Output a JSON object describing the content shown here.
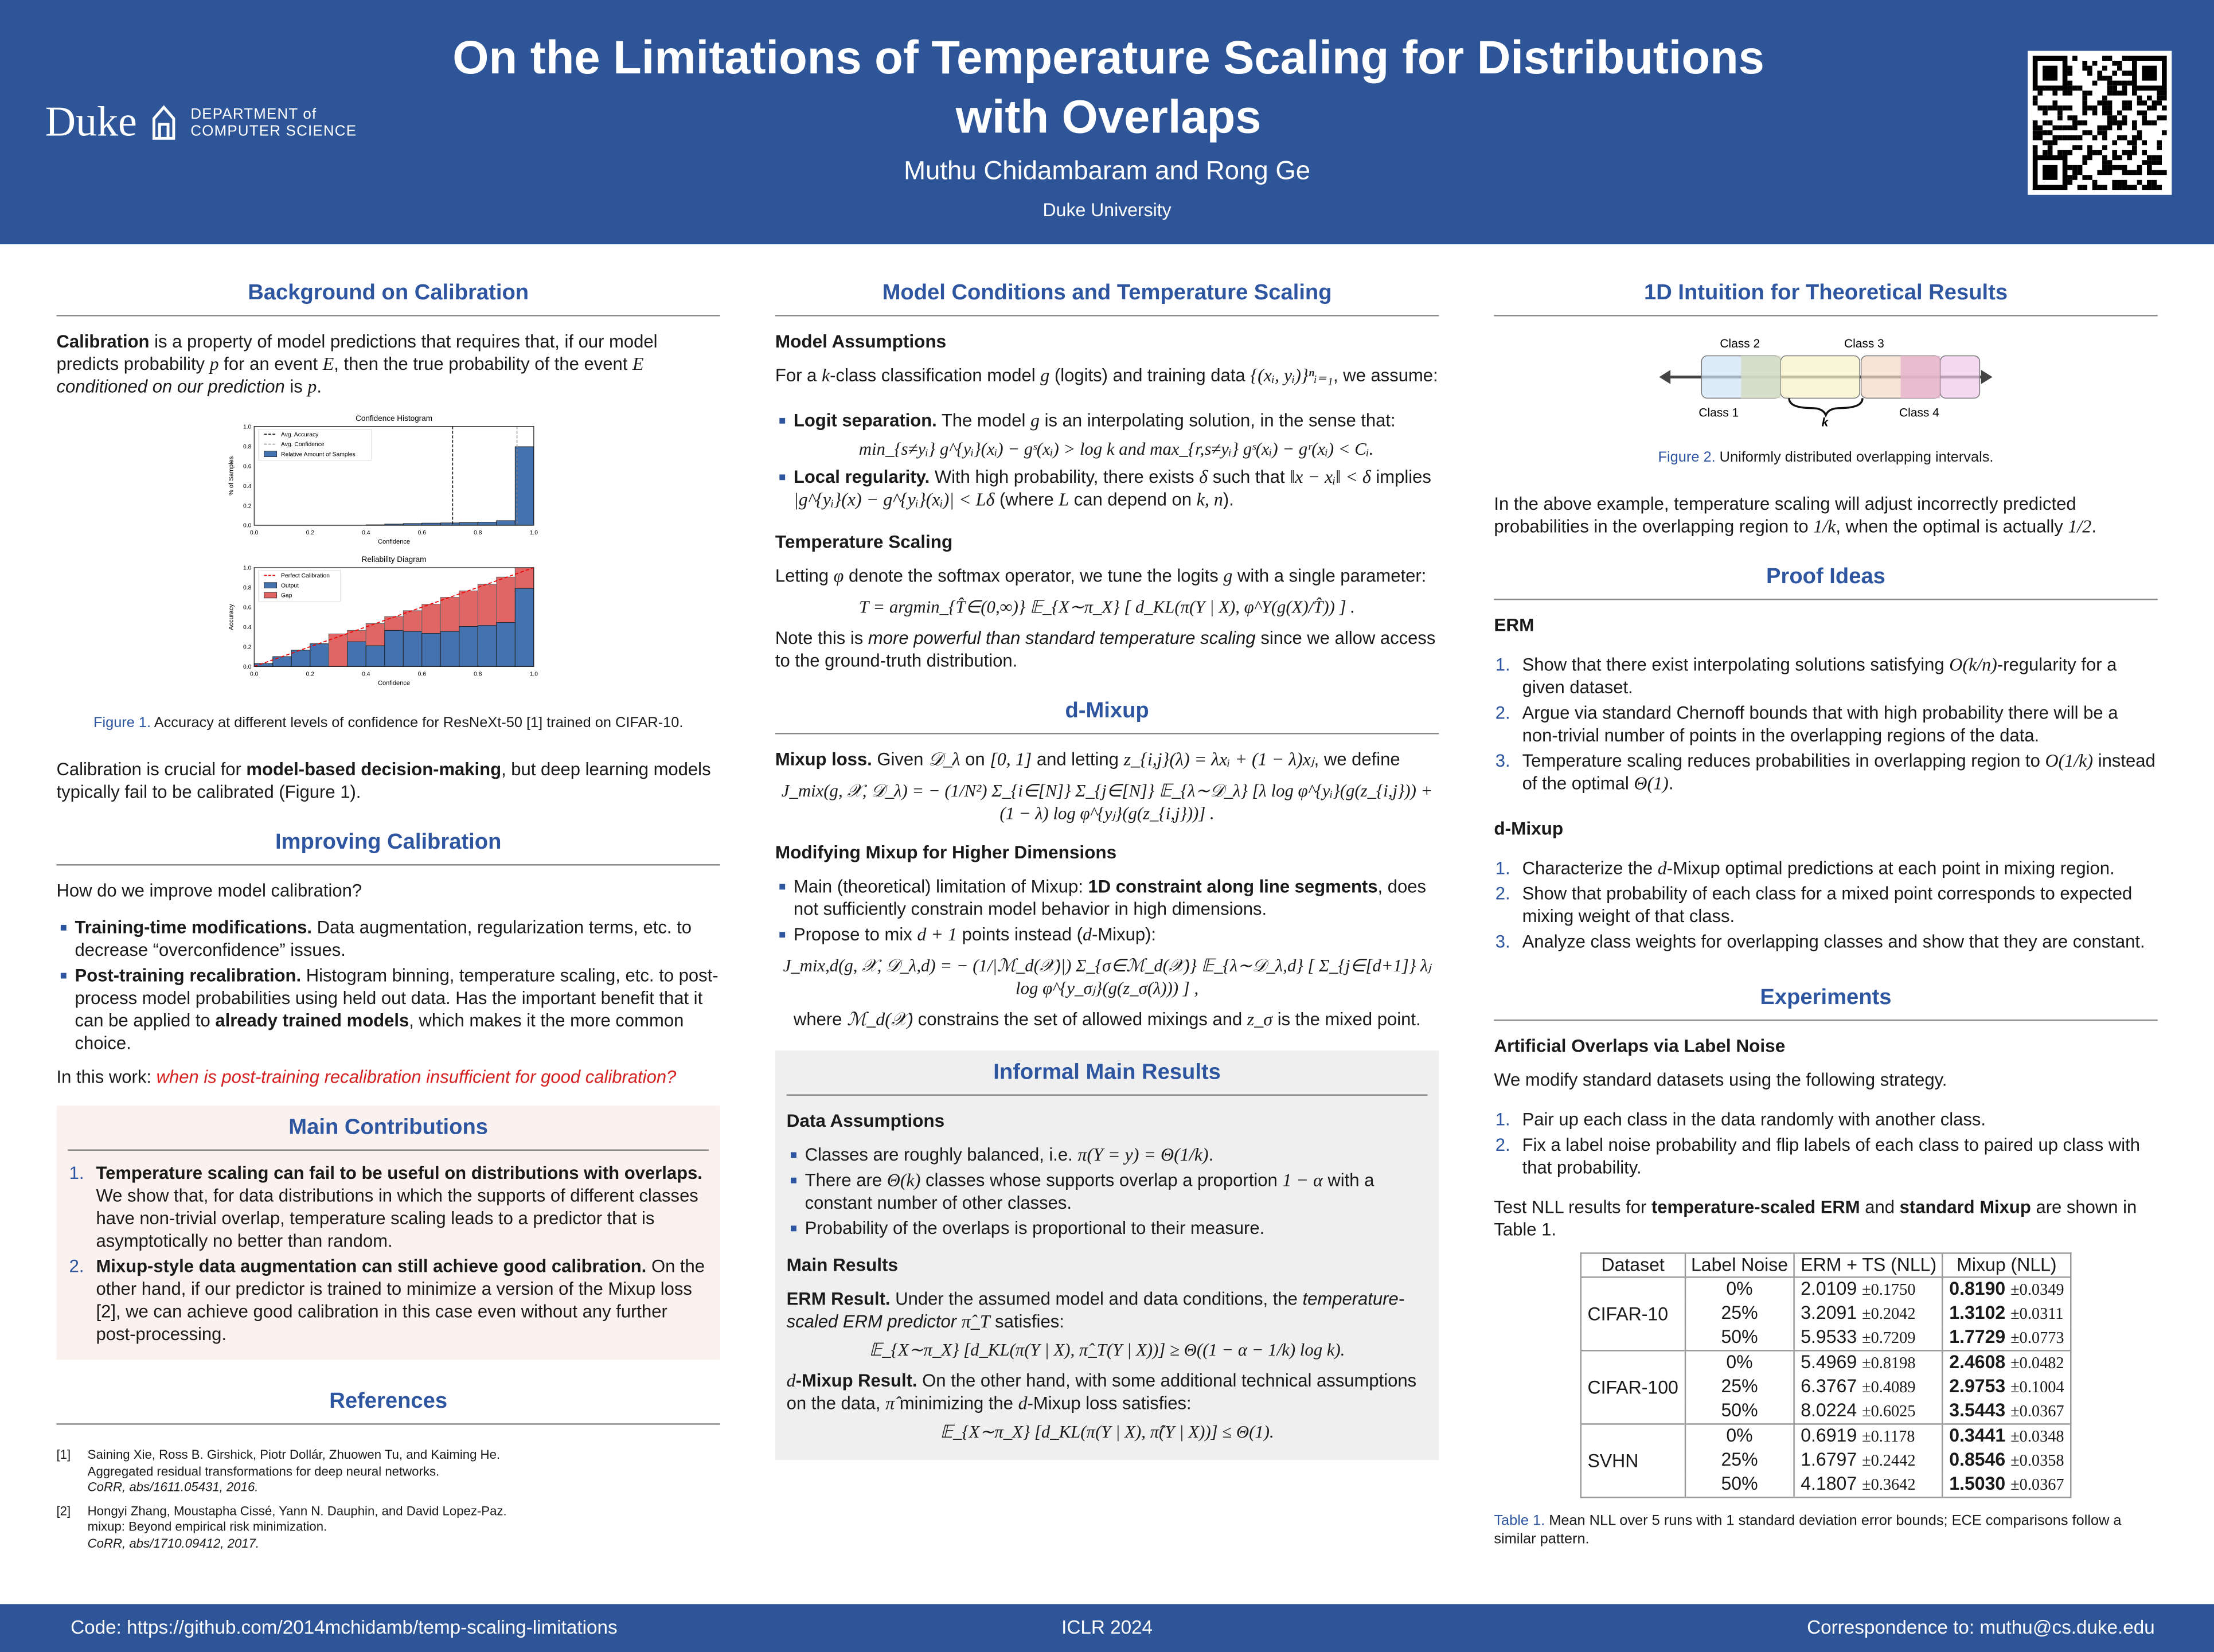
{
  "header": {
    "title": "On the Limitations of Temperature Scaling for Distributions with Overlaps",
    "authors": "Muthu Chidambaram and Rong Ge",
    "affiliation": "Duke University",
    "logo_name": "Duke",
    "logo_dept_1": "DEPARTMENT of",
    "logo_dept_2": "COMPUTER SCIENCE"
  },
  "colors": {
    "brand": "#2e5597",
    "heading": "#2e55a0",
    "accent_red": "#d62020",
    "box_pink": "#fbf1ee",
    "box_gray": "#efefef"
  },
  "left": {
    "h1": "Background on Calibration",
    "p1": [
      {
        "t": "Calibration",
        "s": "b"
      },
      {
        "t": " is a property of model predictions that requires that, if our model predicts probability "
      },
      {
        "t": "p",
        "s": "m"
      },
      {
        "t": " for an event "
      },
      {
        "t": "E",
        "s": "m"
      },
      {
        "t": ", then the true probability of the event "
      },
      {
        "t": "E",
        "s": "m"
      },
      {
        "t": " conditioned on our prediction",
        "s": "i"
      },
      {
        "t": " is "
      },
      {
        "t": "p",
        "s": "m"
      },
      {
        "t": "."
      }
    ],
    "fig1_label": "Figure 1.",
    "fig1_caption": " Accuracy at different levels of confidence for ResNeXt-50 [1] trained on CIFAR-10.",
    "p2": [
      {
        "t": "Calibration is crucial for "
      },
      {
        "t": "model-based decision-making",
        "s": "b"
      },
      {
        "t": ", but deep learning models typically fail to be calibrated (Figure 1)."
      }
    ],
    "h2": "Improving Calibration",
    "q": "How do we improve model calibration?",
    "b1": [
      {
        "t": "Training-time modifications.",
        "s": "b"
      },
      {
        "t": " Data augmentation, regularization terms, etc. to decrease “overconfidence” issues."
      }
    ],
    "b2": [
      {
        "t": "Post-training recalibration.",
        "s": "b"
      },
      {
        "t": " Histogram binning, temperature scaling, etc. to post-process model probabilities using held out data. Has the important benefit that it can be applied to "
      },
      {
        "t": "already trained models",
        "s": "b"
      },
      {
        "t": ", which makes it the more common choice."
      }
    ],
    "p3": [
      {
        "t": "In this work: "
      },
      {
        "t": "when is post-training recalibration insufficient for good calibration?",
        "s": "r"
      }
    ],
    "h3": "Main Contributions",
    "c1": [
      {
        "t": "Temperature scaling can fail to be useful on distributions with overlaps.",
        "s": "b"
      },
      {
        "t": " We show that, for data distributions in which the supports of different classes have non-trivial overlap, temperature scaling leads to a predictor that is asymptotically no better than random."
      }
    ],
    "c2": [
      {
        "t": "Mixup-style data augmentation can still achieve good calibration.",
        "s": "b"
      },
      {
        "t": " On the other hand, if our predictor is trained to minimize a version of the Mixup loss [2], we can achieve good calibration in this case even without any further post-processing."
      }
    ],
    "h4": "References",
    "refs": [
      {
        "n": "[1]",
        "a": "Saining Xie, Ross B. Girshick, Piotr Dollár, Zhuowen Tu, and Kaiming He.",
        "b": "Aggregated residual transformations for deep neural networks.",
        "c": "CoRR, abs/1611.05431, 2016."
      },
      {
        "n": "[2]",
        "a": "Hongyi Zhang, Moustapha Cissé, Yann N. Dauphin, and David Lopez-Paz.",
        "b": "mixup: Beyond empirical risk minimization.",
        "c": "CoRR, abs/1710.09412, 2017."
      }
    ]
  },
  "chart_data": [
    {
      "type": "bar",
      "title": "Confidence Histogram",
      "xlabel": "Confidence",
      "ylabel": "% of Samples",
      "xlim": [
        0,
        1
      ],
      "ylim": [
        0,
        1
      ],
      "xticks": [
        "0.0",
        "0.2",
        "0.4",
        "0.6",
        "0.8",
        "1.0"
      ],
      "yticks": [
        "0.0",
        "0.2",
        "0.4",
        "0.6",
        "0.8",
        "1.0"
      ],
      "bins": 15,
      "values": [
        0,
        0,
        0,
        0,
        0,
        0,
        0.005,
        0.012,
        0.018,
        0.022,
        0.024,
        0.028,
        0.032,
        0.047,
        0.795
      ],
      "avg_accuracy": 0.71,
      "avg_confidence": 0.94,
      "legend": [
        "Avg. Accuracy",
        "Avg. Confidence",
        "Relative Amount of Samples"
      ],
      "legend_position": "top-left"
    },
    {
      "type": "bar",
      "title": "Reliability Diagram",
      "xlabel": "Confidence",
      "ylabel": "Accuracy",
      "xlim": [
        0,
        1
      ],
      "ylim": [
        0,
        1
      ],
      "xticks": [
        "0.0",
        "0.2",
        "0.4",
        "0.6",
        "0.8",
        "1.0"
      ],
      "yticks": [
        "0.0",
        "0.2",
        "0.4",
        "0.6",
        "0.8",
        "1.0"
      ],
      "bins": 15,
      "series": [
        {
          "name": "Output",
          "values": [
            0.03,
            0.1,
            0.165,
            0.23,
            0.0,
            0.25,
            0.21,
            0.365,
            0.355,
            0.335,
            0.355,
            0.405,
            0.415,
            0.445,
            0.79
          ]
        },
        {
          "name": "Gap",
          "top": [
            0.03,
            0.1,
            0.165,
            0.23,
            0.33,
            0.365,
            0.435,
            0.505,
            0.565,
            0.63,
            0.7,
            0.765,
            0.83,
            0.905,
            1.0
          ]
        }
      ],
      "legend": [
        "Perfect Calibration",
        "Output",
        "Gap"
      ],
      "legend_position": "top-left"
    }
  ],
  "middle": {
    "h1": "Model Conditions and Temperature Scaling",
    "s1": "Model Assumptions",
    "p1": [
      {
        "t": "For a "
      },
      {
        "t": "k",
        "s": "m"
      },
      {
        "t": "-class classification model "
      },
      {
        "t": "g",
        "s": "m"
      },
      {
        "t": " (logits) and training data "
      },
      {
        "t": "{(xᵢ, yᵢ)}ⁿᵢ₌₁",
        "s": "m"
      },
      {
        "t": ", we assume:"
      }
    ],
    "b1": [
      {
        "t": "Logit separation.",
        "s": "b"
      },
      {
        "t": " The model "
      },
      {
        "t": "g",
        "s": "m"
      },
      {
        "t": " is an interpolating solution, in the sense that:"
      }
    ],
    "eq1": "min_{s≠yᵢ} g^{yᵢ}(xᵢ) − gˢ(xᵢ) > log k    and    max_{r,s≠yᵢ} gˢ(xᵢ) − gʳ(xᵢ) < Cᵢ.",
    "b2": [
      {
        "t": "Local regularity.",
        "s": "b"
      },
      {
        "t": " With high probability, there exists "
      },
      {
        "t": "δ",
        "s": "m"
      },
      {
        "t": " such that "
      },
      {
        "t": "‖x − xᵢ‖ < δ",
        "s": "m"
      },
      {
        "t": " implies "
      },
      {
        "t": "|g^{yᵢ}(x) − g^{yᵢ}(xᵢ)| < Lδ",
        "s": "m"
      },
      {
        "t": " (where "
      },
      {
        "t": "L",
        "s": "m"
      },
      {
        "t": " can depend on "
      },
      {
        "t": "k, n",
        "s": "m"
      },
      {
        "t": ")."
      }
    ],
    "s2": "Temperature Scaling",
    "p2": [
      {
        "t": "Letting "
      },
      {
        "t": "φ",
        "s": "m"
      },
      {
        "t": " denote the softmax operator, we tune the logits "
      },
      {
        "t": "g",
        "s": "m"
      },
      {
        "t": " with a single parameter:"
      }
    ],
    "eq2": "T = argmin_{T̂∈(0,∞)} 𝔼_{X∼π_X} [ d_KL(π(Y | X), φ^Y(g(X)/T̂)) ] .",
    "p3": [
      {
        "t": "Note this is "
      },
      {
        "t": "more powerful than standard temperature scaling",
        "s": "i"
      },
      {
        "t": " since we allow access to the ground-truth distribution."
      }
    ],
    "h2": "d-Mixup",
    "p4": [
      {
        "t": "Mixup loss.",
        "s": "b"
      },
      {
        "t": " Given "
      },
      {
        "t": "𝒟_λ",
        "s": "m"
      },
      {
        "t": " on "
      },
      {
        "t": "[0, 1]",
        "s": "m"
      },
      {
        "t": " and letting "
      },
      {
        "t": "z_{i,j}(λ) = λxᵢ + (1 − λ)xⱼ",
        "s": "m"
      },
      {
        "t": ", we define"
      }
    ],
    "eq3": "J_mix(g, 𝒳, 𝒟_λ) = − (1/N²) Σ_{i∈[N]} Σ_{j∈[N]} 𝔼_{λ∼𝒟_λ} [λ log φ^{yᵢ}(g(z_{i,j})) + (1 − λ) log φ^{yⱼ}(g(z_{i,j}))] .",
    "s3": "Modifying Mixup for Higher Dimensions",
    "b3": [
      {
        "t": "Main (theoretical) limitation of Mixup: "
      },
      {
        "t": "1D constraint along line segments",
        "s": "b"
      },
      {
        "t": ", does not sufficiently constrain model behavior in high dimensions."
      }
    ],
    "b4": [
      {
        "t": "Propose to mix "
      },
      {
        "t": "d + 1",
        "s": "m"
      },
      {
        "t": " points instead ("
      },
      {
        "t": "d",
        "s": "m"
      },
      {
        "t": "-Mixup):"
      }
    ],
    "eq4": "J_mix,d(g, 𝒳, 𝒟_λ,d) = − (1/|ℳ_d(𝒳)|) Σ_{σ∈ℳ_d(𝒳)} 𝔼_{λ∼𝒟_λ,d} [ Σ_{j∈[d+1]} λⱼ log φ^{y_σⱼ}(g(z_σ(λ))) ] ,",
    "p5": [
      {
        "t": "where "
      },
      {
        "t": "ℳ_d(𝒳)",
        "s": "m"
      },
      {
        "t": " constrains the set of allowed mixings and "
      },
      {
        "t": "z_σ",
        "s": "m"
      },
      {
        "t": " is the mixed point."
      }
    ],
    "h3": "Informal Main Results",
    "s4": "Data Assumptions",
    "d1": [
      {
        "t": "Classes are roughly balanced, i.e. "
      },
      {
        "t": "π(Y = y) = Θ(1/k)",
        "s": "m"
      },
      {
        "t": "."
      }
    ],
    "d2": [
      {
        "t": "There are "
      },
      {
        "t": "Θ(k)",
        "s": "m"
      },
      {
        "t": " classes whose supports overlap a proportion "
      },
      {
        "t": "1 − α",
        "s": "m"
      },
      {
        "t": " with a constant number of other classes."
      }
    ],
    "d3": [
      {
        "t": "Probability of the overlaps is proportional to their measure."
      }
    ],
    "s5": "Main Results",
    "r1": [
      {
        "t": "ERM Result.",
        "s": "b"
      },
      {
        "t": " Under the assumed model and data conditions, the "
      },
      {
        "t": "temperature-scaled ERM predictor",
        "s": "i"
      },
      {
        "t": " "
      },
      {
        "t": "π̂_T",
        "s": "m"
      },
      {
        "t": " satisfies:"
      }
    ],
    "eq5": "𝔼_{X∼π_X} [d_KL(π(Y | X), π̂_T(Y | X))] ≥ Θ((1 − α − 1/k) log k).",
    "r2": [
      {
        "t": "d",
        "s": "m"
      },
      {
        "t": "-Mixup Result.",
        "s": "b"
      },
      {
        "t": " On the other hand, with some additional technical assumptions on the data, "
      },
      {
        "t": "π̂",
        "s": "m"
      },
      {
        "t": " minimizing the "
      },
      {
        "t": "d",
        "s": "m"
      },
      {
        "t": "-Mixup loss satisfies:"
      }
    ],
    "eq6": "𝔼_{X∼π_X} [d_KL(π(Y | X), π̂(Y | X))] ≤ Θ(1)."
  },
  "right": {
    "h1": "1D Intuition for Theoretical Results",
    "fig2": {
      "class1": "Class 1",
      "class2": "Class 2",
      "class3": "Class 3",
      "class4": "Class 4",
      "k": "k",
      "label": "Figure 2.",
      "caption": " Uniformly distributed overlapping intervals."
    },
    "p1": [
      {
        "t": "In the above example, temperature scaling will adjust incorrectly predicted probabilities in the overlapping region to "
      },
      {
        "t": "1/k",
        "s": "m"
      },
      {
        "t": ", when the optimal is actually "
      },
      {
        "t": "1/2",
        "s": "m"
      },
      {
        "t": "."
      }
    ],
    "h2": "Proof Ideas",
    "s1": "ERM",
    "e1": [
      {
        "t": "Show that there exist interpolating solutions satisfying "
      },
      {
        "t": "O(k/n)",
        "s": "m"
      },
      {
        "t": "-regularity for a given dataset."
      }
    ],
    "e2": [
      {
        "t": "Argue via standard Chernoff bounds that with high probability there will be a non-trivial number of points in the overlapping regions of the data."
      }
    ],
    "e3": [
      {
        "t": "Temperature scaling reduces probabilities in overlapping region to "
      },
      {
        "t": "O(1/k)",
        "s": "m"
      },
      {
        "t": " instead of the optimal "
      },
      {
        "t": "Θ(1)",
        "s": "m"
      },
      {
        "t": "."
      }
    ],
    "s2": "d-Mixup",
    "m1": [
      {
        "t": "Characterize the "
      },
      {
        "t": "d",
        "s": "m"
      },
      {
        "t": "-Mixup optimal predictions at each point in mixing region."
      }
    ],
    "m2": [
      {
        "t": "Show that probability of each class for a mixed point corresponds to expected mixing weight of that class."
      }
    ],
    "m3": [
      {
        "t": "Analyze class weights for overlapping classes and show that they are constant."
      }
    ],
    "h3": "Experiments",
    "s3": "Artificial Overlaps via Label Noise",
    "p2": "We modify standard datasets using the following strategy.",
    "x1": "Pair up each class in the data randomly with another class.",
    "x2": "Fix a label noise probability and flip labels of each class to paired up class with that probability.",
    "p3": [
      {
        "t": "Test NLL results for "
      },
      {
        "t": "temperature-scaled ERM",
        "s": "b"
      },
      {
        "t": " and "
      },
      {
        "t": "standard Mixup",
        "s": "b"
      },
      {
        "t": " are shown in Table 1."
      }
    ],
    "table": {
      "headers": [
        "Dataset",
        "Label Noise",
        "ERM + TS (NLL)",
        "Mixup (NLL)"
      ],
      "groups": [
        {
          "dataset": "CIFAR-10",
          "rows": [
            [
              "0%",
              "2.0109",
              "±0.1750",
              "0.8190",
              "±0.0349"
            ],
            [
              "25%",
              "3.2091",
              "±0.2042",
              "1.3102",
              "±0.0311"
            ],
            [
              "50%",
              "5.9533",
              "±0.7209",
              "1.7729",
              "±0.0773"
            ]
          ]
        },
        {
          "dataset": "CIFAR-100",
          "rows": [
            [
              "0%",
              "5.4969",
              "±0.8198",
              "2.4608",
              "±0.0482"
            ],
            [
              "25%",
              "6.3767",
              "±0.4089",
              "2.9753",
              "±0.1004"
            ],
            [
              "50%",
              "8.0224",
              "±0.6025",
              "3.5443",
              "±0.0367"
            ]
          ]
        },
        {
          "dataset": "SVHN",
          "rows": [
            [
              "0%",
              "0.6919",
              "±0.1178",
              "0.3441",
              "±0.0348"
            ],
            [
              "25%",
              "1.6797",
              "±0.2442",
              "0.8546",
              "±0.0358"
            ],
            [
              "50%",
              "4.1807",
              "±0.3642",
              "1.5030",
              "±0.0367"
            ]
          ]
        }
      ]
    },
    "tab_label": "Table 1.",
    "tab_caption": " Mean NLL over 5 runs with 1 standard deviation error bounds; ECE comparisons follow a similar pattern."
  },
  "footer": {
    "code": "Code: https://github.com/2014mchidamb/temp-scaling-limitations",
    "venue": "ICLR 2024",
    "contact": "Correspondence to: muthu@cs.duke.edu"
  }
}
